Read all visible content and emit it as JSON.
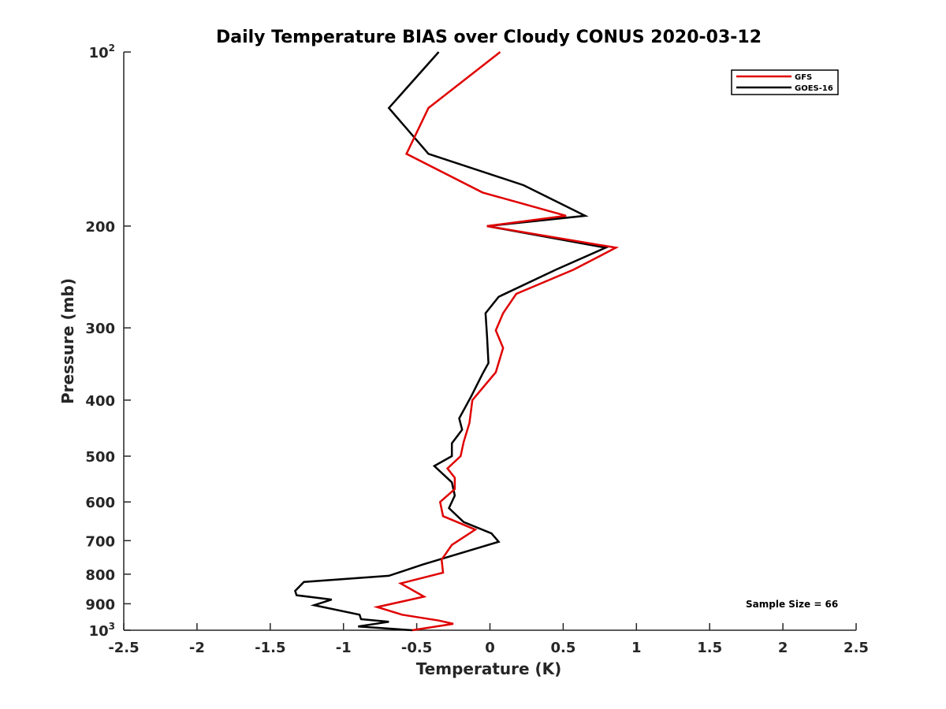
{
  "chart_data": {
    "type": "line",
    "title": "Daily Temperature BIAS over Cloudy CONUS 2020-03-12",
    "xlabel": "Temperature (K)",
    "ylabel": "Pressure (mb)",
    "xlim": [
      -2.5,
      2.5
    ],
    "ylim": [
      100,
      1000
    ],
    "y_scale": "log",
    "y_reversed": true,
    "xticks": [
      -2.5,
      -2,
      -1.5,
      -1,
      -0.5,
      0,
      0.5,
      1,
      1.5,
      2,
      2.5
    ],
    "xtick_labels": [
      "-2.5",
      "-2",
      "-1.5",
      "-1",
      "-0.5",
      "0",
      "0.5",
      "1",
      "1.5",
      "2",
      "2.5"
    ],
    "yticks": [
      {
        "value": 100,
        "base": "10",
        "exp": "2"
      },
      {
        "value": 200,
        "label": "200"
      },
      {
        "value": 300,
        "label": "300"
      },
      {
        "value": 400,
        "label": "400"
      },
      {
        "value": 500,
        "label": "500"
      },
      {
        "value": 600,
        "label": "600"
      },
      {
        "value": 700,
        "label": "700"
      },
      {
        "value": 800,
        "label": "800"
      },
      {
        "value": 900,
        "label": "900"
      },
      {
        "value": 1000,
        "base": "10",
        "exp": "3"
      }
    ],
    "grid": false,
    "legend_position": "top-right",
    "annotation": "Sample Size = 66",
    "series": [
      {
        "name": "GFS",
        "color": "#e00000",
        "points": [
          [
            0.07,
            100
          ],
          [
            -0.42,
            125
          ],
          [
            -0.57,
            150
          ],
          [
            -0.05,
            175
          ],
          [
            0.52,
            192
          ],
          [
            -0.02,
            200
          ],
          [
            0.86,
            218
          ],
          [
            0.57,
            238
          ],
          [
            0.18,
            262
          ],
          [
            0.09,
            283
          ],
          [
            0.04,
            303
          ],
          [
            0.09,
            325
          ],
          [
            0.04,
            358
          ],
          [
            -0.12,
            400
          ],
          [
            -0.14,
            438
          ],
          [
            -0.18,
            473
          ],
          [
            -0.2,
            500
          ],
          [
            -0.29,
            525
          ],
          [
            -0.24,
            545
          ],
          [
            -0.24,
            570
          ],
          [
            -0.34,
            600
          ],
          [
            -0.32,
            635
          ],
          [
            -0.1,
            670
          ],
          [
            -0.26,
            712
          ],
          [
            -0.33,
            755
          ],
          [
            -0.32,
            795
          ],
          [
            -0.61,
            830
          ],
          [
            -0.45,
            875
          ],
          [
            -0.77,
            912
          ],
          [
            -0.6,
            940
          ],
          [
            -0.35,
            962
          ],
          [
            -0.25,
            975
          ],
          [
            -0.53,
            1000
          ]
        ]
      },
      {
        "name": "GOES-16",
        "color": "#000000",
        "points": [
          [
            -0.35,
            100
          ],
          [
            -0.69,
            125
          ],
          [
            -0.42,
            150
          ],
          [
            0.23,
            170
          ],
          [
            0.65,
            192
          ],
          [
            -0.02,
            200
          ],
          [
            0.79,
            218
          ],
          [
            0.45,
            238
          ],
          [
            0.06,
            265
          ],
          [
            -0.03,
            283
          ],
          [
            -0.02,
            310
          ],
          [
            -0.01,
            345
          ],
          [
            -0.05,
            360
          ],
          [
            -0.13,
            395
          ],
          [
            -0.21,
            430
          ],
          [
            -0.19,
            450
          ],
          [
            -0.26,
            475
          ],
          [
            -0.26,
            500
          ],
          [
            -0.38,
            520
          ],
          [
            -0.26,
            555
          ],
          [
            -0.24,
            585
          ],
          [
            -0.28,
            615
          ],
          [
            -0.18,
            650
          ],
          [
            0.01,
            680
          ],
          [
            0.06,
            703
          ],
          [
            -0.46,
            770
          ],
          [
            -0.69,
            805
          ],
          [
            -1.27,
            825
          ],
          [
            -1.33,
            855
          ],
          [
            -1.32,
            870
          ],
          [
            -1.08,
            885
          ],
          [
            -1.2,
            905
          ],
          [
            -0.89,
            940
          ],
          [
            -0.88,
            957
          ],
          [
            -0.69,
            967
          ],
          [
            -0.9,
            985
          ],
          [
            -0.53,
            1000
          ]
        ]
      }
    ]
  }
}
